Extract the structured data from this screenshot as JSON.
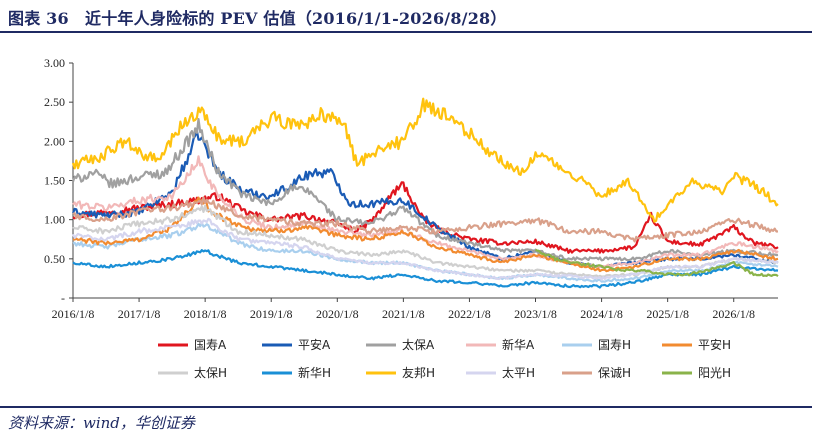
{
  "header": {
    "title": "图表 36　近十年人身险标的 PEV 估值（2016/1/1-2026/8/28）"
  },
  "footer": {
    "source": "资料来源：wind，华创证券"
  },
  "chart_data": {
    "type": "line",
    "title": "",
    "xlabel": "",
    "ylabel": "",
    "ylim": [
      0,
      3
    ],
    "y_ticks": [
      "-",
      "0.50",
      "1.00",
      "1.50",
      "2.00",
      "2.50",
      "3.00"
    ],
    "x_range": [
      2016.0,
      2026.67
    ],
    "x_ticks": [
      {
        "label": "2016/1/8",
        "x": 2016.0
      },
      {
        "label": "2017/1/8",
        "x": 2017.0
      },
      {
        "label": "2018/1/8",
        "x": 2018.0
      },
      {
        "label": "2019/1/8",
        "x": 2019.0
      },
      {
        "label": "2020/1/8",
        "x": 2020.0
      },
      {
        "label": "2021/1/8",
        "x": 2021.0
      },
      {
        "label": "2022/1/8",
        "x": 2022.0
      },
      {
        "label": "2023/1/8",
        "x": 2023.0
      },
      {
        "label": "2024/1/8",
        "x": 2024.0
      },
      {
        "label": "2025/1/8",
        "x": 2025.0
      },
      {
        "label": "2026/1/8",
        "x": 2026.0
      }
    ],
    "grid": false,
    "legend_position": "bottom",
    "series": [
      {
        "name": "国寿A",
        "color": "#e0161f",
        "x": [
          2016,
          2016.5,
          2017,
          2017.5,
          2017.9,
          2018.2,
          2018.6,
          2019,
          2019.5,
          2020,
          2020.3,
          2020.6,
          2020.85,
          2021,
          2021.3,
          2021.6,
          2022,
          2022.5,
          2023,
          2023.5,
          2024,
          2024.5,
          2024.75,
          2025,
          2025.5,
          2026,
          2026.3,
          2026.67
        ],
        "y": [
          1.05,
          1.1,
          1.15,
          1.2,
          1.25,
          1.3,
          1.1,
          1.0,
          1.05,
          0.95,
          0.85,
          1.05,
          1.35,
          1.45,
          1.0,
          0.85,
          0.75,
          0.7,
          0.72,
          0.6,
          0.6,
          0.65,
          1.05,
          0.72,
          0.68,
          0.9,
          0.7,
          0.65
        ]
      },
      {
        "name": "平安A",
        "color": "#1a5bb5",
        "x": [
          2016,
          2016.5,
          2017,
          2017.5,
          2017.9,
          2018.2,
          2018.6,
          2019,
          2019.3,
          2019.6,
          2019.9,
          2020.2,
          2020.5,
          2021,
          2021.5,
          2022,
          2022.5,
          2023,
          2023.5,
          2024,
          2024.5,
          2025,
          2025.5,
          2026,
          2026.67
        ],
        "y": [
          1.1,
          1.05,
          1.1,
          1.35,
          2.1,
          1.6,
          1.35,
          1.3,
          1.45,
          1.6,
          1.6,
          1.2,
          1.2,
          1.25,
          0.9,
          0.65,
          0.5,
          0.6,
          0.45,
          0.4,
          0.45,
          0.5,
          0.5,
          0.55,
          0.45
        ]
      },
      {
        "name": "太保A",
        "color": "#a0a0a0",
        "x": [
          2016,
          2016.3,
          2016.6,
          2017,
          2017.4,
          2017.9,
          2018.2,
          2018.6,
          2019,
          2019.3,
          2019.6,
          2020,
          2020.5,
          2021,
          2021.5,
          2022,
          2022.5,
          2023,
          2023.5,
          2024,
          2024.5,
          2025,
          2025.5,
          2026,
          2026.67
        ],
        "y": [
          1.5,
          1.6,
          1.45,
          1.55,
          1.6,
          2.2,
          1.6,
          1.3,
          1.2,
          1.4,
          1.35,
          1.0,
          0.95,
          1.15,
          0.8,
          0.7,
          0.6,
          0.6,
          0.5,
          0.5,
          0.5,
          0.6,
          0.55,
          0.6,
          0.55
        ]
      },
      {
        "name": "新华A",
        "color": "#f2b8b8",
        "x": [
          2016,
          2016.5,
          2017,
          2017.5,
          2017.9,
          2018.2,
          2018.6,
          2019,
          2019.5,
          2020,
          2020.5,
          2021,
          2021.5,
          2022,
          2022.5,
          2023,
          2023.5,
          2024,
          2024.5,
          2025,
          2025.5,
          2026,
          2026.67
        ],
        "y": [
          1.2,
          1.15,
          1.25,
          1.3,
          1.75,
          1.3,
          1.0,
          0.9,
          0.95,
          0.85,
          0.8,
          0.85,
          0.7,
          0.6,
          0.5,
          0.55,
          0.45,
          0.4,
          0.45,
          0.55,
          0.55,
          0.7,
          0.6
        ]
      },
      {
        "name": "国寿H",
        "color": "#a9cfee",
        "x": [
          2016,
          2016.5,
          2017,
          2017.5,
          2018,
          2018.5,
          2019,
          2019.5,
          2020,
          2020.5,
          2021,
          2021.5,
          2022,
          2022.5,
          2023,
          2023.5,
          2024,
          2024.5,
          2025,
          2025.5,
          2026,
          2026.67
        ],
        "y": [
          0.7,
          0.65,
          0.75,
          0.8,
          0.95,
          0.7,
          0.6,
          0.6,
          0.5,
          0.45,
          0.45,
          0.35,
          0.3,
          0.25,
          0.3,
          0.25,
          0.22,
          0.25,
          0.35,
          0.35,
          0.45,
          0.4
        ]
      },
      {
        "name": "平安H",
        "color": "#f28b30",
        "x": [
          2016,
          2016.5,
          2017,
          2017.5,
          2017.9,
          2018.2,
          2018.6,
          2019,
          2019.5,
          2020,
          2020.5,
          2021,
          2021.5,
          2022,
          2022.5,
          2023,
          2023.5,
          2024,
          2024.5,
          2025,
          2025.5,
          2026,
          2026.67
        ],
        "y": [
          0.75,
          0.7,
          0.75,
          0.9,
          1.25,
          1.05,
          0.9,
          0.85,
          0.9,
          0.8,
          0.75,
          0.85,
          0.65,
          0.55,
          0.45,
          0.55,
          0.45,
          0.35,
          0.4,
          0.5,
          0.5,
          0.6,
          0.5
        ]
      },
      {
        "name": "太保H",
        "color": "#cfcfcf",
        "x": [
          2016,
          2016.5,
          2017,
          2017.5,
          2018,
          2018.5,
          2019,
          2019.5,
          2020,
          2020.5,
          2021,
          2021.5,
          2022,
          2022.5,
          2023,
          2023.5,
          2024,
          2024.5,
          2025,
          2025.5,
          2026,
          2026.67
        ],
        "y": [
          0.9,
          0.85,
          0.95,
          1.0,
          1.15,
          0.85,
          0.8,
          0.75,
          0.6,
          0.55,
          0.6,
          0.45,
          0.4,
          0.35,
          0.35,
          0.3,
          0.28,
          0.3,
          0.4,
          0.4,
          0.5,
          0.45
        ]
      },
      {
        "name": "新华H",
        "color": "#1a8fd6",
        "x": [
          2016,
          2016.5,
          2017,
          2017.5,
          2018,
          2018.5,
          2019,
          2019.5,
          2020,
          2020.5,
          2021,
          2021.5,
          2022,
          2022.5,
          2023,
          2023.5,
          2024,
          2024.5,
          2025,
          2025.5,
          2026,
          2026.67
        ],
        "y": [
          0.45,
          0.4,
          0.45,
          0.5,
          0.6,
          0.45,
          0.4,
          0.35,
          0.3,
          0.25,
          0.3,
          0.22,
          0.2,
          0.15,
          0.2,
          0.15,
          0.15,
          0.2,
          0.3,
          0.3,
          0.4,
          0.35
        ]
      },
      {
        "name": "友邦H",
        "color": "#ffc20e",
        "x": [
          2016,
          2016.4,
          2016.8,
          2017,
          2017.3,
          2017.6,
          2017.9,
          2018.2,
          2018.6,
          2019,
          2019.4,
          2019.8,
          2020.1,
          2020.3,
          2020.6,
          2021,
          2021.3,
          2021.7,
          2022,
          2022.4,
          2022.8,
          2023,
          2023.3,
          2023.7,
          2024,
          2024.4,
          2024.8,
          2025,
          2025.4,
          2025.8,
          2026,
          2026.3,
          2026.67
        ],
        "y": [
          1.7,
          1.8,
          2.0,
          1.85,
          1.75,
          2.15,
          2.4,
          2.05,
          2.0,
          2.3,
          2.2,
          2.35,
          2.2,
          1.7,
          1.9,
          2.0,
          2.45,
          2.3,
          2.1,
          1.8,
          1.6,
          1.85,
          1.7,
          1.5,
          1.3,
          1.5,
          1.0,
          1.2,
          1.5,
          1.35,
          1.55,
          1.45,
          1.2
        ]
      },
      {
        "name": "太平H",
        "color": "#d5d5ef",
        "x": [
          2016,
          2016.5,
          2017,
          2017.5,
          2018,
          2018.5,
          2019,
          2019.5,
          2020,
          2020.5,
          2021,
          2021.5,
          2022,
          2022.5,
          2023,
          2023.5,
          2024,
          2024.5,
          2025,
          2025.5,
          2026,
          2026.67
        ],
        "y": [
          0.8,
          0.75,
          0.85,
          0.9,
          1.0,
          0.75,
          0.7,
          0.65,
          0.5,
          0.45,
          0.45,
          0.35,
          0.3,
          0.25,
          0.3,
          0.28,
          0.25,
          0.3,
          0.4,
          0.4,
          0.5,
          0.45
        ]
      },
      {
        "name": "保诚H",
        "color": "#d9a08a",
        "x": [
          2016,
          2016.5,
          2017,
          2017.5,
          2018,
          2018.5,
          2019,
          2019.5,
          2020,
          2020.5,
          2021,
          2021.5,
          2022,
          2022.5,
          2023,
          2023.5,
          2024,
          2024.5,
          2025,
          2025.5,
          2026,
          2026.67
        ],
        "y": [
          1.05,
          1.0,
          1.1,
          1.15,
          1.25,
          1.05,
          1.0,
          0.95,
          0.95,
          0.85,
          0.9,
          0.85,
          0.9,
          0.95,
          1.0,
          0.85,
          0.85,
          0.75,
          0.8,
          0.85,
          1.0,
          0.85
        ]
      },
      {
        "name": "阳光H",
        "color": "#8ab34a",
        "x": [
          2023,
          2023.3,
          2023.6,
          2024,
          2024.3,
          2024.6,
          2025,
          2025.3,
          2025.6,
          2026,
          2026.3,
          2026.67
        ],
        "y": [
          0.6,
          0.5,
          0.45,
          0.4,
          0.35,
          0.35,
          0.3,
          0.3,
          0.35,
          0.45,
          0.3,
          0.28
        ]
      }
    ]
  }
}
